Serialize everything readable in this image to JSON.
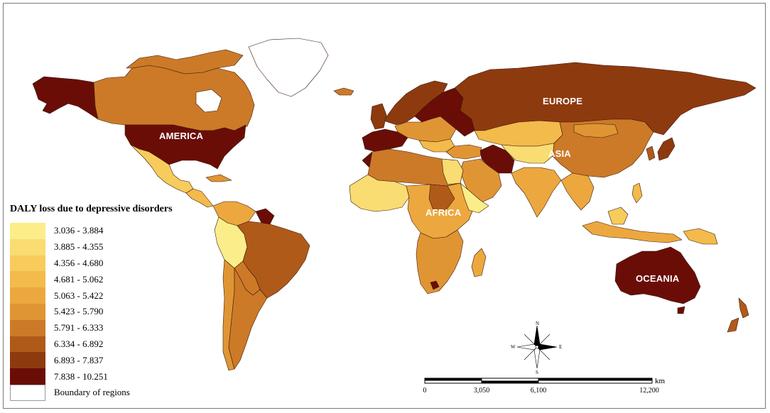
{
  "regions": {
    "america": "AMERICA",
    "europe": "EUROPE",
    "asia": "ASIA",
    "africa": "AFRICA",
    "oceania": "OCEANIA"
  },
  "legend": {
    "title": "DALY loss due to depressive disorders",
    "classes": [
      {
        "label": "3.036 - 3.884",
        "color": "#fbee8a"
      },
      {
        "label": "3.885 - 4.355",
        "color": "#f9dc72"
      },
      {
        "label": "4.356 - 4.680",
        "color": "#f7cc5c"
      },
      {
        "label": "4.681 - 5.062",
        "color": "#f3ba4c"
      },
      {
        "label": "5.063 - 5.422",
        "color": "#eca83f"
      },
      {
        "label": "5.423 - 5.790",
        "color": "#e09534"
      },
      {
        "label": "5.791 - 6.333",
        "color": "#cc7a28"
      },
      {
        "label": "6.334 - 6.892",
        "color": "#b05a1a"
      },
      {
        "label": "6.893 - 7.837",
        "color": "#8e3a0f"
      },
      {
        "label": "7.838 - 10.251",
        "color": "#6a0d07"
      }
    ],
    "boundary_label": "Boundary of regions"
  },
  "scale": {
    "ticks": [
      "0",
      "3,050",
      "6,100",
      "12,200"
    ],
    "unit": "km"
  },
  "compass": {
    "n": "N",
    "s": "S",
    "e": "E",
    "w": "W"
  }
}
